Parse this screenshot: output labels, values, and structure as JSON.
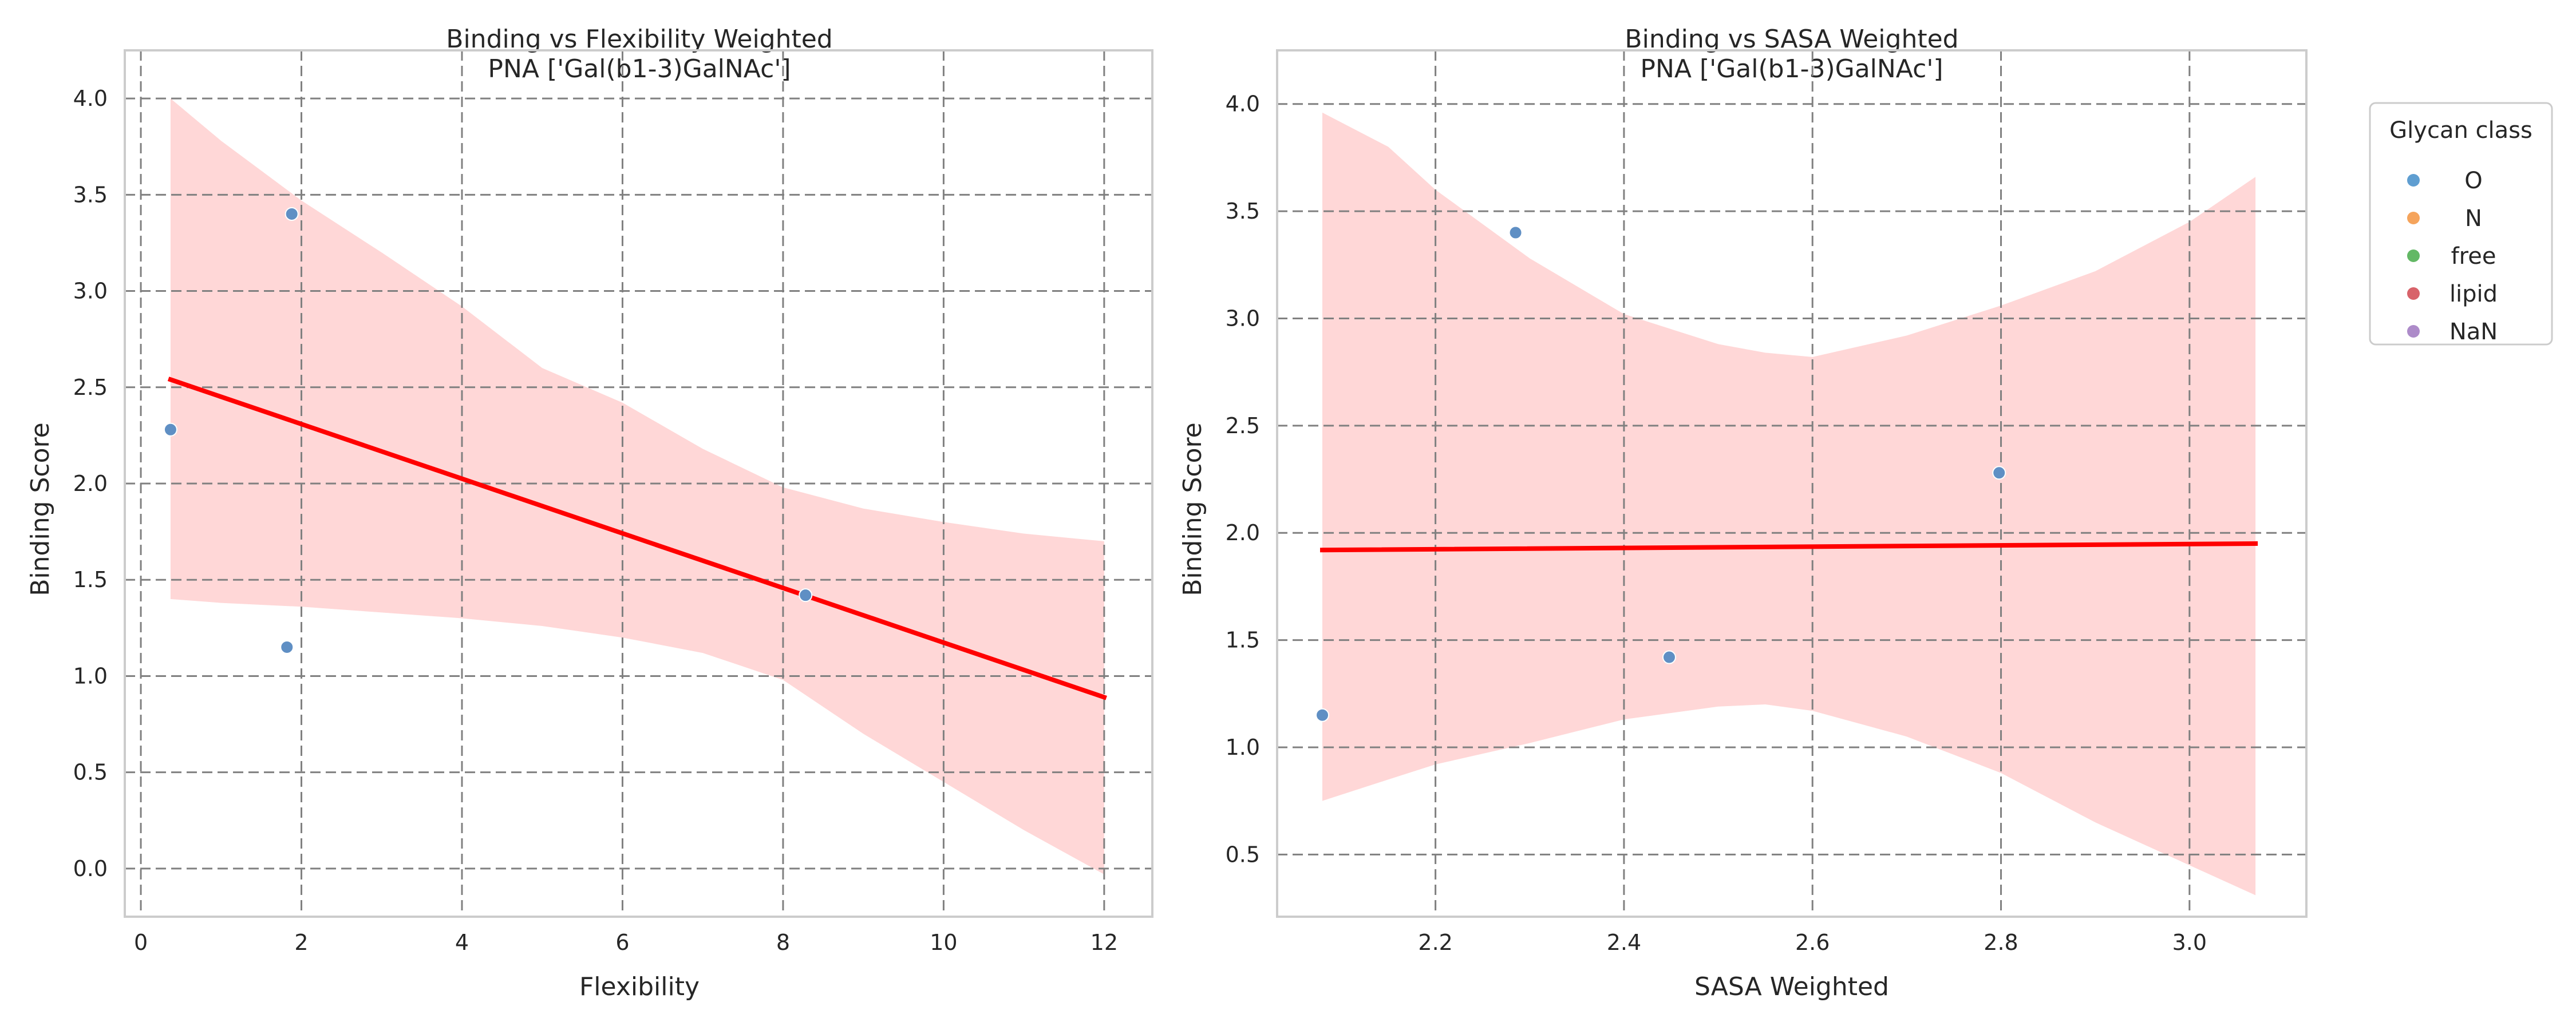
{
  "chart_data": [
    {
      "type": "scatter",
      "title": "Binding vs Flexibility Weighted",
      "subtitle": "PNA ['Gal(b1-3)GalNAc']",
      "xlabel": "Flexibility",
      "ylabel": "Binding Score",
      "xlim": [
        -0.2,
        12.6
      ],
      "ylim": [
        -0.25,
        4.25
      ],
      "xticks": [
        "0",
        "2",
        "4",
        "6",
        "8",
        "10",
        "12"
      ],
      "yticks": [
        "0.0",
        "0.5",
        "1.0",
        "1.5",
        "2.0",
        "2.5",
        "3.0",
        "3.5",
        "4.0"
      ],
      "grid": true,
      "points": [
        {
          "x": 0.37,
          "y": 2.28,
          "class": "O"
        },
        {
          "x": 1.88,
          "y": 3.4,
          "class": "O"
        },
        {
          "x": 1.82,
          "y": 1.15,
          "class": "O"
        },
        {
          "x": 8.28,
          "y": 1.42,
          "class": "O"
        }
      ],
      "regression": {
        "x": [
          0.37,
          12.0
        ],
        "y": [
          2.54,
          0.89
        ]
      },
      "confidence_band": {
        "x": [
          0.37,
          1.0,
          2.0,
          3.0,
          4.0,
          5.0,
          6.0,
          7.0,
          8.0,
          9.0,
          10.0,
          11.0,
          12.0
        ],
        "upper": [
          4.0,
          3.78,
          3.47,
          3.2,
          2.92,
          2.6,
          2.42,
          2.18,
          1.98,
          1.87,
          1.8,
          1.74,
          1.7
        ],
        "lower": [
          1.4,
          1.38,
          1.36,
          1.33,
          1.3,
          1.26,
          1.2,
          1.12,
          0.98,
          0.7,
          0.45,
          0.2,
          -0.03
        ]
      }
    },
    {
      "type": "scatter",
      "title": "Binding vs SASA Weighted",
      "subtitle": "PNA ['Gal(b1-3)GalNAc']",
      "xlabel": "SASA Weighted",
      "ylabel": "Binding Score",
      "xlim": [
        2.032,
        3.124
      ],
      "ylim": [
        0.21,
        4.25
      ],
      "xticks": [
        "2.2",
        "2.4",
        "2.6",
        "2.8",
        "3.0"
      ],
      "yticks": [
        "0.5",
        "1.0",
        "1.5",
        "2.0",
        "2.5",
        "3.0",
        "3.5",
        "4.0"
      ],
      "grid": true,
      "points": [
        {
          "x": 2.08,
          "y": 1.15,
          "class": "O"
        },
        {
          "x": 2.285,
          "y": 3.4,
          "class": "O"
        },
        {
          "x": 2.448,
          "y": 1.42,
          "class": "O"
        },
        {
          "x": 2.798,
          "y": 2.28,
          "class": "O"
        }
      ],
      "regression": {
        "x": [
          2.08,
          3.07
        ],
        "y": [
          1.92,
          1.95
        ]
      },
      "confidence_band": {
        "x": [
          2.08,
          2.15,
          2.2,
          2.3,
          2.4,
          2.5,
          2.55,
          2.6,
          2.7,
          2.8,
          2.9,
          3.0,
          3.07
        ],
        "upper": [
          3.96,
          3.8,
          3.6,
          3.28,
          3.02,
          2.88,
          2.84,
          2.82,
          2.92,
          3.06,
          3.22,
          3.45,
          3.66
        ],
        "lower": [
          0.75,
          0.85,
          0.92,
          1.02,
          1.13,
          1.19,
          1.2,
          1.17,
          1.05,
          0.88,
          0.65,
          0.45,
          0.31
        ]
      }
    }
  ],
  "legend": {
    "title": "Glycan class",
    "entries": [
      {
        "label": "O",
        "color": "#5f9ed1"
      },
      {
        "label": "N",
        "color": "#f5a45c"
      },
      {
        "label": "free",
        "color": "#63b865"
      },
      {
        "label": "lipid",
        "color": "#d8636a"
      },
      {
        "label": "NaN",
        "color": "#ad8bc9"
      }
    ]
  },
  "colors": {
    "point": "#5f8fc4",
    "regression": "#ff0000",
    "band": "#ffd7d7",
    "grid": "#808080",
    "frame": "#cccccc"
  }
}
